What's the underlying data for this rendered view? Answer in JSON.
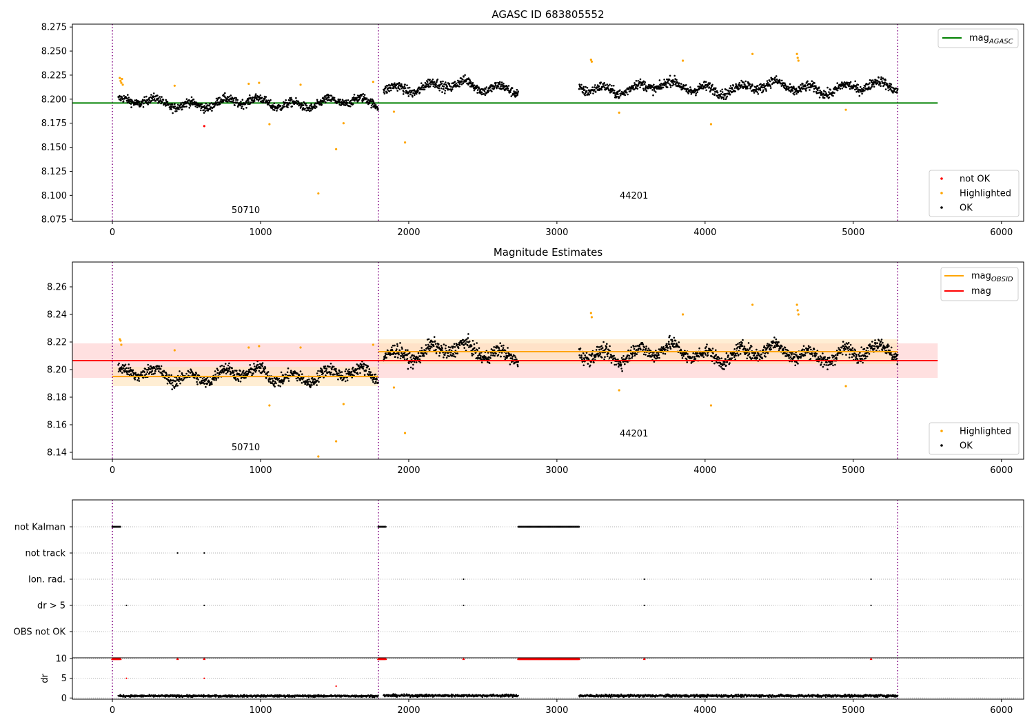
{
  "figure": {
    "title_top": "AGASC ID 683805552",
    "title_mid": "Magnitude Estimates"
  },
  "chart_data": [
    {
      "type": "scatter",
      "title": "AGASC ID 683805552",
      "xlabel": "",
      "ylabel": "",
      "xlim": [
        -270,
        6150
      ],
      "ylim": [
        8.073,
        8.278
      ],
      "xticks": [
        0,
        1000,
        2000,
        3000,
        4000,
        5000,
        6000
      ],
      "yticks": [
        8.075,
        8.1,
        8.125,
        8.15,
        8.175,
        8.2,
        8.225,
        8.25,
        8.275
      ],
      "ytick_labels": [
        "8.075",
        "8.100",
        "8.125",
        "8.150",
        "8.175",
        "8.200",
        "8.225",
        "8.250",
        "8.275"
      ],
      "obs_boundaries": [
        0,
        1795,
        5300
      ],
      "obs_labels": [
        {
          "text": "50710",
          "x": 900,
          "y": 8.0815
        },
        {
          "text": "44201",
          "x": 3520,
          "y": 8.0965
        }
      ],
      "reference_lines": [
        {
          "name": "mag_AGASC",
          "y": 8.196,
          "x_range": [
            -270,
            5570
          ],
          "color": "#008000"
        }
      ],
      "legend_top": {
        "position": "top-right",
        "entries": [
          {
            "label": "mag",
            "sub": "AGASC",
            "color": "#008000"
          }
        ]
      },
      "legend_bottom": {
        "position": "lower-right",
        "entries": [
          {
            "label": "not OK",
            "color": "#ff0000"
          },
          {
            "label": "Highlighted",
            "color": "#ffa500"
          },
          {
            "label": "OK",
            "color": "#000000"
          }
        ]
      },
      "series": [
        {
          "name": "OK",
          "color": "#000000",
          "segments": [
            {
              "x_range": [
                40,
                1795
              ],
              "y_mean": 8.196,
              "y_spread": 0.008
            },
            {
              "x_range": [
                1830,
                2740
              ],
              "y_mean": 8.213,
              "y_spread": 0.009
            },
            {
              "x_range": [
                3150,
                5300
              ],
              "y_mean": 8.212,
              "y_spread": 0.009
            }
          ]
        },
        {
          "name": "Highlighted",
          "color": "#ffa500",
          "points": [
            [
              50,
              8.222
            ],
            [
              55,
              8.219
            ],
            [
              60,
              8.217
            ],
            [
              65,
              8.221
            ],
            [
              70,
              8.215
            ],
            [
              420,
              8.214
            ],
            [
              920,
              8.216
            ],
            [
              990,
              8.217
            ],
            [
              1060,
              8.174
            ],
            [
              1270,
              8.215
            ],
            [
              1390,
              8.102
            ],
            [
              1510,
              8.148
            ],
            [
              1560,
              8.175
            ],
            [
              1760,
              8.218
            ],
            [
              1900,
              8.187
            ],
            [
              1975,
              8.155
            ],
            [
              3230,
              8.241
            ],
            [
              3235,
              8.239
            ],
            [
              3420,
              8.186
            ],
            [
              3850,
              8.24
            ],
            [
              4040,
              8.174
            ],
            [
              4320,
              8.247
            ],
            [
              4620,
              8.247
            ],
            [
              4625,
              8.243
            ],
            [
              4630,
              8.24
            ],
            [
              4950,
              8.189
            ]
          ]
        },
        {
          "name": "not OK",
          "color": "#ff0000",
          "points": [
            [
              620,
              8.172
            ]
          ]
        }
      ]
    },
    {
      "type": "scatter",
      "title": "Magnitude Estimates",
      "xlabel": "",
      "ylabel": "",
      "xlim": [
        -270,
        6150
      ],
      "ylim": [
        8.135,
        8.278
      ],
      "xticks": [
        0,
        1000,
        2000,
        3000,
        4000,
        5000,
        6000
      ],
      "yticks": [
        8.14,
        8.16,
        8.18,
        8.2,
        8.22,
        8.24,
        8.26
      ],
      "ytick_labels": [
        "8.14",
        "8.16",
        "8.18",
        "8.20",
        "8.22",
        "8.24",
        "8.26"
      ],
      "obs_boundaries": [
        0,
        1795,
        5300
      ],
      "obs_labels": [
        {
          "text": "50710",
          "x": 900,
          "y": 8.1415
        },
        {
          "text": "44201",
          "x": 3520,
          "y": 8.1515
        }
      ],
      "bands": [
        {
          "name": "mag range",
          "y_range": [
            8.194,
            8.219
          ],
          "x_range": [
            -270,
            5570
          ],
          "color": "#ffcccc"
        },
        {
          "name": "mag_OBSID range 50710",
          "y_range": [
            8.188,
            8.202
          ],
          "x_range": [
            0,
            1795
          ],
          "color": "#ffe3b8"
        },
        {
          "name": "mag_OBSID range 44201",
          "y_range": [
            8.204,
            8.222
          ],
          "x_range": [
            1795,
            5300
          ],
          "color": "#ffe3b8"
        }
      ],
      "reference_lines": [
        {
          "name": "mag_OBSID",
          "y": 8.195,
          "x_range": [
            0,
            1795
          ],
          "color": "#ffa500"
        },
        {
          "name": "mag_OBSID",
          "y": 8.213,
          "x_range": [
            1795,
            5300
          ],
          "color": "#ffa500"
        },
        {
          "name": "mag",
          "y": 8.2065,
          "x_range": [
            -270,
            5570
          ],
          "color": "#ff0000"
        }
      ],
      "legend_top": {
        "position": "top-right",
        "entries": [
          {
            "label": "mag",
            "sub": "OBSID",
            "color": "#ffa500"
          },
          {
            "label": "mag",
            "sub": "",
            "color": "#ff0000"
          }
        ]
      },
      "legend_bottom": {
        "position": "lower-right",
        "entries": [
          {
            "label": "Highlighted",
            "color": "#ffa500"
          },
          {
            "label": "OK",
            "color": "#000000"
          }
        ]
      },
      "series": [
        {
          "name": "OK",
          "color": "#000000",
          "segments": [
            {
              "x_range": [
                40,
                1795
              ],
              "y_mean": 8.196,
              "y_spread": 0.008
            },
            {
              "x_range": [
                1830,
                2740
              ],
              "y_mean": 8.213,
              "y_spread": 0.009
            },
            {
              "x_range": [
                3150,
                5300
              ],
              "y_mean": 8.212,
              "y_spread": 0.009
            }
          ]
        },
        {
          "name": "Highlighted",
          "color": "#ffa500",
          "points": [
            [
              50,
              8.222
            ],
            [
              55,
              8.221
            ],
            [
              60,
              8.218
            ],
            [
              420,
              8.214
            ],
            [
              920,
              8.216
            ],
            [
              990,
              8.217
            ],
            [
              1060,
              8.174
            ],
            [
              1270,
              8.216
            ],
            [
              1390,
              8.137
            ],
            [
              1510,
              8.148
            ],
            [
              1560,
              8.175
            ],
            [
              1760,
              8.218
            ],
            [
              1900,
              8.187
            ],
            [
              1975,
              8.154
            ],
            [
              3230,
              8.241
            ],
            [
              3235,
              8.238
            ],
            [
              3420,
              8.185
            ],
            [
              3850,
              8.24
            ],
            [
              4040,
              8.174
            ],
            [
              4320,
              8.247
            ],
            [
              4620,
              8.247
            ],
            [
              4625,
              8.243
            ],
            [
              4630,
              8.24
            ],
            [
              4950,
              8.188
            ]
          ]
        }
      ]
    },
    {
      "type": "scatter",
      "title": "",
      "xlabel": "",
      "ylabel": "",
      "xlim": [
        -270,
        6150
      ],
      "categories": [
        "not Kalman",
        "not track",
        "Ion. rad.",
        "dr > 5",
        "OBS not OK"
      ],
      "obs_boundaries": [
        0,
        1795,
        5300
      ],
      "series": [
        {
          "name": "not Kalman",
          "color": "#000000",
          "x_ranges": [
            [
              0,
              55
            ],
            [
              1795,
              1845
            ],
            [
              2740,
              3150
            ]
          ]
        },
        {
          "name": "not track",
          "color": "#000000",
          "x": [
            440,
            620
          ]
        },
        {
          "name": "Ion. rad.",
          "color": "#000000",
          "x": [
            2370,
            3590,
            5120
          ]
        },
        {
          "name": "dr > 5",
          "color": "#000000",
          "x": [
            95,
            620,
            2370,
            3590,
            5120
          ]
        },
        {
          "name": "OBS not OK",
          "color": "#000000",
          "x": []
        }
      ]
    },
    {
      "type": "scatter",
      "title": "",
      "xlabel": "",
      "ylabel": "dr",
      "xlim": [
        -270,
        6150
      ],
      "ylim": [
        -0.3,
        10.2
      ],
      "xticks": [
        0,
        1000,
        2000,
        3000,
        4000,
        5000,
        6000
      ],
      "yticks": [
        0,
        5,
        10
      ],
      "ytick_labels": [
        "0",
        "5",
        "10"
      ],
      "obs_boundaries": [
        0,
        1795,
        5300
      ],
      "series": [
        {
          "name": "dr",
          "color": "#000000",
          "segments": [
            {
              "x_range": [
                40,
                1795
              ],
              "y_mean": 0.5,
              "y_spread": 0.25
            },
            {
              "x_range": [
                1830,
                2740
              ],
              "y_mean": 0.6,
              "y_spread": 0.3
            },
            {
              "x_range": [
                3150,
                5300
              ],
              "y_mean": 0.55,
              "y_spread": 0.3
            }
          ]
        },
        {
          "name": "dr clipped (>=10)",
          "color": "#ff0000",
          "x_ranges": [
            [
              0,
              55
            ],
            [
              1795,
              1845
            ],
            [
              2740,
              3150
            ]
          ],
          "x": [
            440,
            620,
            2370,
            3590,
            5120
          ],
          "y": 10
        },
        {
          "name": "dr > 5",
          "color": "#ff0000",
          "points": [
            [
              95,
              5.0
            ],
            [
              620,
              5.0
            ],
            [
              1510,
              3.0
            ]
          ]
        }
      ]
    }
  ]
}
